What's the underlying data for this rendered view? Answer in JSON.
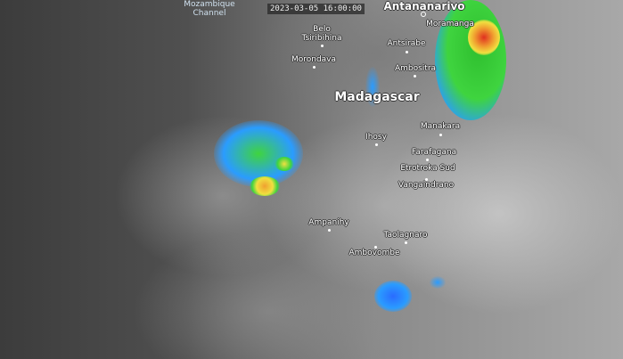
{
  "timestamp": "2023-03-05 16:00:00",
  "water_label": {
    "line1": "Mozambique",
    "line2": "Channel"
  },
  "country_label": "Madagascar",
  "cities": {
    "antananarivo": "Antananarivo",
    "moramanga": "Moramanga",
    "belo1": "Belo",
    "belo2": "Tsiribihina",
    "antsirabe": "Antsirabe",
    "morondava": "Morondava",
    "ambositra": "Ambositra",
    "manakara": "Manakara",
    "ihosy": "Ihosy",
    "farafagana": "Farafagana",
    "etrotroka": "Etrotroka Sud",
    "vangaindrano": "Vangaindrano",
    "ampanihy": "Ampanihy",
    "taolagnaro": "Taolagnaro",
    "ambovombe": "Ambovombe"
  },
  "colors": {
    "cold_cloud_blue": "#2a6cff",
    "green": "#3fd43f",
    "yellow": "#f0e040",
    "red": "#e03020"
  }
}
